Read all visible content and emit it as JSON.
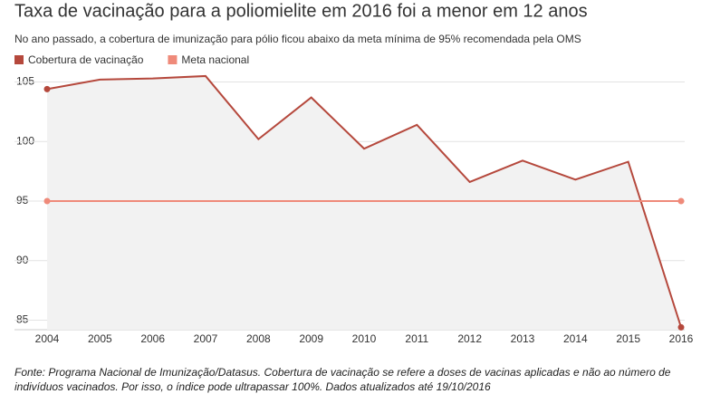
{
  "chart_data": {
    "type": "line",
    "title": "Taxa de vacinação para a poliomielite em 2016 foi a menor em 12 anos",
    "subtitle": "No ano passado, a cobertura de imunização para pólio ficou abaixo da meta mínima de 95% recomendada pela OMS",
    "note": "Fonte: Programa Nacional de Imunização/Datasus. Cobertura de vacinação se refere a doses de vacinas aplicadas e não ao número de indivíduos vacinados. Por isso, o índice pode ultrapassar 100%. Dados atualizados até 19/10/2016",
    "categories": [
      "2004",
      "2005",
      "2006",
      "2007",
      "2008",
      "2009",
      "2010",
      "2011",
      "2012",
      "2013",
      "2014",
      "2015",
      "2016"
    ],
    "series": [
      {
        "name": "Cobertura de vacinação",
        "color": "#b5483c",
        "values": [
          104.4,
          105.2,
          105.3,
          105.5,
          100.2,
          103.7,
          99.4,
          101.4,
          96.6,
          98.4,
          96.8,
          98.3,
          84.4
        ]
      },
      {
        "name": "Meta nacional",
        "color": "#ef8a7a",
        "values": [
          95,
          95,
          95,
          95,
          95,
          95,
          95,
          95,
          95,
          95,
          95,
          95,
          95
        ]
      }
    ],
    "ylim": [
      84.2,
      105.8
    ],
    "yticks": [
      85,
      90,
      95,
      100,
      105
    ],
    "grid": true
  }
}
